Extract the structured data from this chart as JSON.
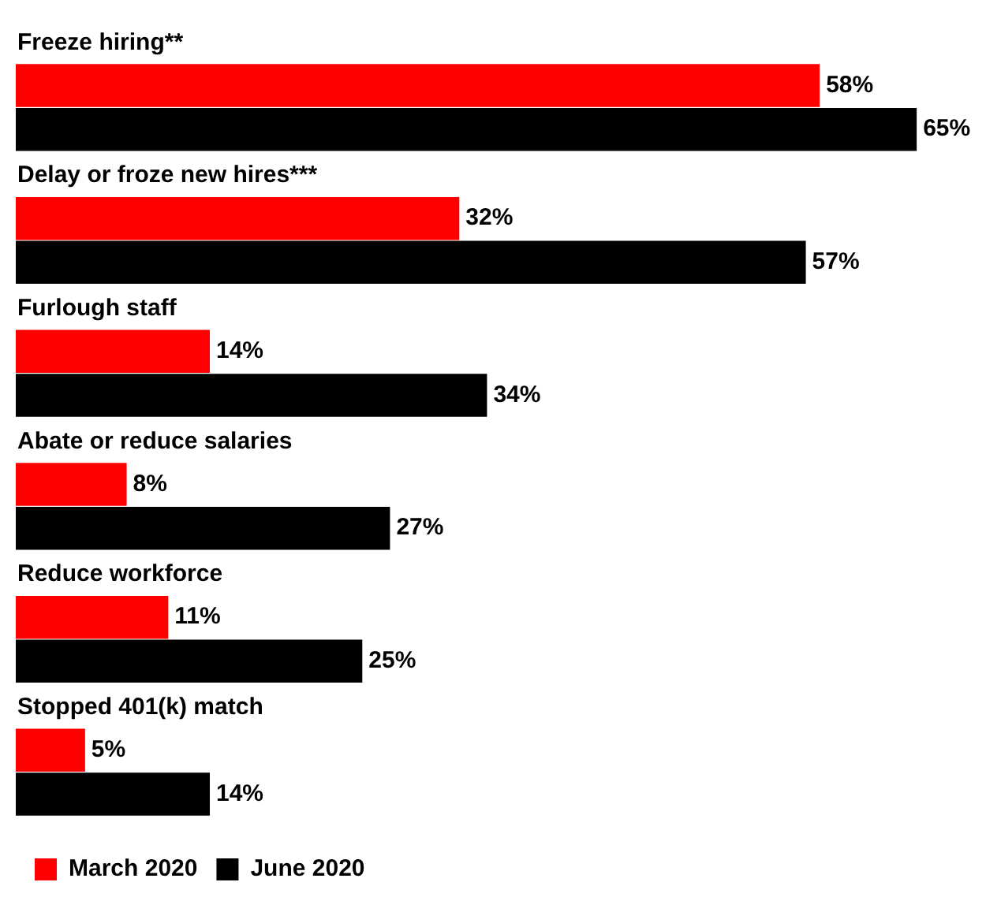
{
  "chart_data": {
    "type": "bar",
    "orientation": "horizontal",
    "categories": [
      "Freeze hiring**",
      "Delay or froze new hires***",
      "Furlough staff",
      "Abate or reduce salaries",
      "Reduce workforce",
      "Stopped 401(k) match"
    ],
    "series": [
      {
        "name": "March 2020",
        "color": "#ff0000",
        "values": [
          58,
          32,
          14,
          8,
          11,
          5
        ],
        "value_labels": [
          "58%",
          "32%",
          "14%",
          "8%",
          "11%",
          "5%"
        ]
      },
      {
        "name": "June 2020",
        "color": "#000000",
        "values": [
          65,
          57,
          34,
          27,
          25,
          14
        ],
        "value_labels": [
          "65%",
          "57%",
          "34%",
          "27%",
          "25%",
          "14%"
        ]
      }
    ],
    "legend": "bottom"
  }
}
